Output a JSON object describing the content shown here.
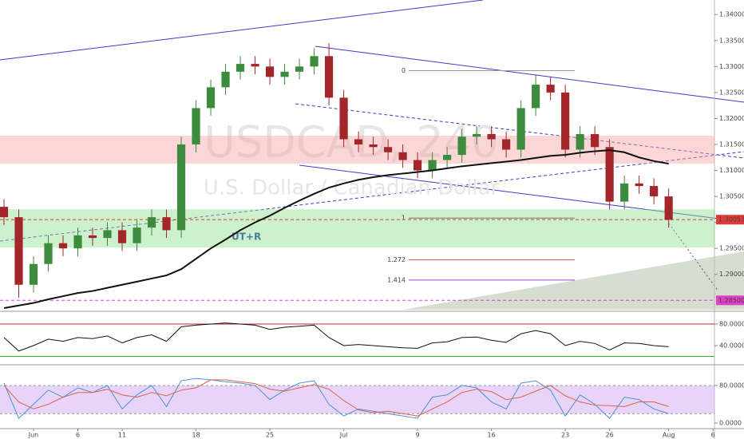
{
  "chart_data": [
    {
      "type": "candlestick",
      "title": "USDCAD, 240",
      "subtitle": "U.S. Dollar / Canadian Dollar",
      "xlim": [
        -0.27,
        48.1
      ],
      "ylim": [
        1.2832,
        1.3428
      ],
      "yticks": [
        {
          "value": 1.29,
          "label": "1.29000"
        },
        {
          "value": 1.295,
          "label": "1.29500"
        },
        {
          "value": 1.3,
          "label": "1.30000"
        },
        {
          "value": 1.305,
          "label": "1.30500"
        },
        {
          "value": 1.31,
          "label": "1.31000"
        },
        {
          "value": 1.315,
          "label": "1.31500"
        },
        {
          "value": 1.32,
          "label": "1.32000"
        },
        {
          "value": 1.325,
          "label": "1.32500"
        },
        {
          "value": 1.33,
          "label": "1.33000"
        },
        {
          "value": 1.335,
          "label": "1.33500"
        },
        {
          "value": 1.34,
          "label": "1.34000"
        }
      ],
      "up_color": "#3d8b3d",
      "down_color": "#a3262a",
      "open": [
        1.303,
        1.301,
        1.288,
        1.292,
        1.296,
        1.295,
        1.2975,
        1.297,
        1.2985,
        1.296,
        1.299,
        1.301,
        1.2985,
        1.315,
        1.322,
        1.326,
        1.329,
        1.3305,
        1.33,
        1.328,
        1.329,
        1.33,
        1.332,
        1.324,
        1.316,
        1.315,
        1.3145,
        1.3135,
        1.312,
        1.31,
        1.312,
        1.313,
        1.3165,
        1.317,
        1.316,
        1.314,
        1.322,
        1.3265,
        1.325,
        1.314,
        1.317,
        1.3145,
        1.304,
        1.3075,
        1.307,
        1.305
      ],
      "high": [
        1.3045,
        1.3025,
        1.2935,
        1.2975,
        1.2975,
        1.299,
        1.299,
        1.3,
        1.3,
        1.3005,
        1.3025,
        1.3025,
        1.3165,
        1.3235,
        1.3275,
        1.3305,
        1.332,
        1.332,
        1.3315,
        1.3305,
        1.3315,
        1.3335,
        1.3345,
        1.3255,
        1.3175,
        1.3165,
        1.316,
        1.315,
        1.3135,
        1.3135,
        1.3145,
        1.318,
        1.3185,
        1.3185,
        1.3175,
        1.3235,
        1.3285,
        1.328,
        1.3265,
        1.3185,
        1.3185,
        1.316,
        1.309,
        1.309,
        1.3085,
        1.3065
      ],
      "low": [
        1.2995,
        1.2855,
        1.2865,
        1.2905,
        1.2935,
        1.2935,
        1.2955,
        1.2955,
        1.2945,
        1.2945,
        1.2975,
        1.297,
        1.297,
        1.3135,
        1.3205,
        1.3245,
        1.3275,
        1.3285,
        1.3265,
        1.3265,
        1.3275,
        1.3285,
        1.3225,
        1.3145,
        1.3135,
        1.313,
        1.312,
        1.3105,
        1.3085,
        1.3085,
        1.3105,
        1.3115,
        1.315,
        1.3145,
        1.3125,
        1.3125,
        1.3205,
        1.3235,
        1.3125,
        1.3125,
        1.313,
        1.3025,
        1.3025,
        1.3055,
        1.3035,
        1.299
      ],
      "close": [
        1.301,
        1.288,
        1.292,
        1.296,
        1.295,
        1.2975,
        1.297,
        1.2985,
        1.296,
        1.299,
        1.301,
        1.2985,
        1.315,
        1.322,
        1.326,
        1.329,
        1.3305,
        1.33,
        1.328,
        1.329,
        1.33,
        1.332,
        1.324,
        1.316,
        1.315,
        1.3145,
        1.3135,
        1.312,
        1.31,
        1.312,
        1.313,
        1.3165,
        1.317,
        1.316,
        1.314,
        1.322,
        1.3265,
        1.325,
        1.314,
        1.317,
        1.3145,
        1.304,
        1.3075,
        1.307,
        1.305,
        1.3005
      ],
      "ma": {
        "color": "#111111",
        "values": [
          1.2835,
          1.284,
          1.2845,
          1.2852,
          1.2858,
          1.2864,
          1.2868,
          1.2874,
          1.288,
          1.2886,
          1.2892,
          1.2898,
          1.291,
          1.293,
          1.295,
          1.2967,
          1.2985,
          1.3,
          1.3013,
          1.3028,
          1.3042,
          1.3055,
          1.3067,
          1.3075,
          1.3082,
          1.3087,
          1.3091,
          1.3094,
          1.3097,
          1.31,
          1.3104,
          1.3108,
          1.3111,
          1.3114,
          1.3117,
          1.312,
          1.3124,
          1.3128,
          1.313,
          1.3134,
          1.3137,
          1.3139,
          1.3135,
          1.3125,
          1.3118,
          1.3113
        ]
      },
      "zones": [
        {
          "from": 1.29515,
          "to": 1.30252,
          "color": "#8fe08f"
        },
        {
          "from": 1.3113,
          "to": 1.3167,
          "color": "#f4a3a3"
        }
      ],
      "levels": [
        {
          "value": 1.30053,
          "color": "#e53935"
        },
        {
          "value": 1.285,
          "label": "1.28500",
          "color": "#e040c8"
        }
      ],
      "fib": [
        {
          "label": "0",
          "value": 1.3292,
          "color": "#999999"
        },
        {
          "label": "1",
          "value": 1.30083,
          "color": "#777777"
        },
        {
          "label": "1.272",
          "value": 1.2928,
          "color": "#e05050"
        },
        {
          "label": "1.414",
          "value": 1.2889,
          "color": "#b040d0"
        }
      ],
      "annotations": [
        "UT+R"
      ]
    },
    {
      "type": "line",
      "xlim": [
        -0.27,
        48.1
      ],
      "ylim": [
        7.4,
        96.3
      ],
      "yticks": [
        {
          "value": 80,
          "label": "80.0000"
        },
        {
          "value": 40,
          "label": "40.0000"
        }
      ],
      "levels": [
        {
          "value": 80,
          "color": "#c62828"
        },
        {
          "value": 20,
          "color": "#2fb52f"
        }
      ],
      "series": [
        {
          "color": "#111111",
          "values": [
            55,
            30,
            40,
            52,
            48,
            55,
            53,
            58,
            45,
            55,
            60,
            48,
            75,
            78,
            80,
            82,
            80,
            78,
            70,
            74,
            76,
            78,
            55,
            40,
            42,
            40,
            38,
            36,
            35,
            45,
            47,
            55,
            56,
            50,
            46,
            62,
            68,
            62,
            40,
            48,
            44,
            32,
            45,
            44,
            40,
            38
          ]
        }
      ]
    },
    {
      "type": "line",
      "xlim": [
        -0.27,
        48.1
      ],
      "ylim": [
        -8.5,
        119
      ],
      "yticks": [
        {
          "value": 80,
          "label": "80.0000"
        },
        {
          "value": 0,
          "label": "0.0000"
        }
      ],
      "band": {
        "from": 20,
        "to": 80,
        "color": "#d9b8f5"
      },
      "series": [
        {
          "color": "#4a90d9",
          "values": [
            85,
            10,
            40,
            70,
            55,
            75,
            65,
            80,
            30,
            60,
            80,
            35,
            90,
            95,
            92,
            88,
            85,
            80,
            50,
            70,
            85,
            90,
            40,
            15,
            30,
            25,
            20,
            15,
            10,
            55,
            60,
            80,
            75,
            45,
            30,
            85,
            90,
            70,
            15,
            60,
            40,
            10,
            55,
            50,
            30,
            20
          ]
        },
        {
          "color": "#e0604a",
          "values": [
            80,
            45,
            30,
            40,
            55,
            65,
            65,
            72,
            60,
            55,
            65,
            58,
            70,
            75,
            92,
            92,
            88,
            84,
            72,
            68,
            75,
            82,
            72,
            48,
            28,
            22,
            25,
            20,
            15,
            30,
            45,
            65,
            72,
            67,
            50,
            55,
            68,
            80,
            58,
            45,
            38,
            37,
            35,
            45,
            45,
            35
          ]
        }
      ],
      "xticks": [
        {
          "value": 2,
          "label": "Jun"
        },
        {
          "value": 5,
          "label": "6"
        },
        {
          "value": 8,
          "label": "11"
        },
        {
          "value": 13,
          "label": "18"
        },
        {
          "value": 18,
          "label": "25"
        },
        {
          "value": 23,
          "label": "Jul"
        },
        {
          "value": 28,
          "label": "9"
        },
        {
          "value": 33,
          "label": "16"
        },
        {
          "value": 38,
          "label": "23"
        },
        {
          "value": 41,
          "label": "26"
        },
        {
          "value": 45,
          "label": "Aug"
        },
        {
          "value": 48,
          "label": "6"
        }
      ]
    }
  ]
}
